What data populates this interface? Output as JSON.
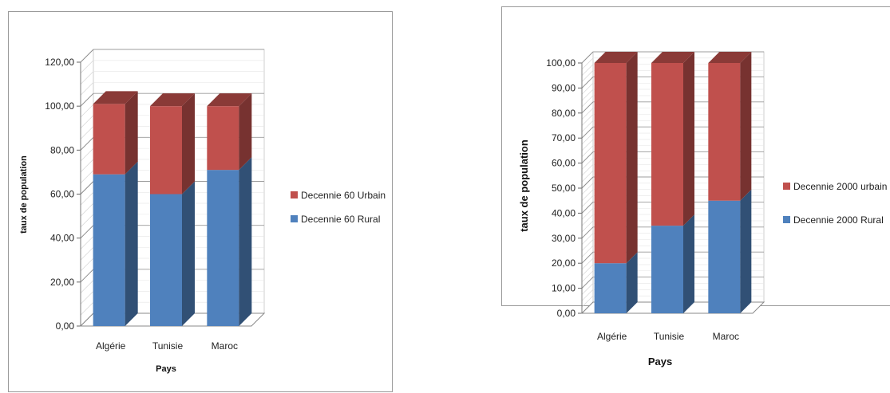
{
  "chart_data": [
    {
      "type": "bar",
      "stacked": true,
      "three_d": true,
      "categories": [
        "Algérie",
        "Tunisie",
        "Maroc"
      ],
      "series": [
        {
          "name": "Decennie 60 Rural",
          "values": [
            69,
            60,
            71
          ],
          "color": "#4f81bd"
        },
        {
          "name": "Decennie 60 Urbain",
          "values": [
            32,
            40,
            29
          ],
          "color": "#c0504d"
        }
      ],
      "xlabel": "Pays",
      "ylabel": "taux de population",
      "ylim": [
        0,
        120
      ],
      "yticks": [
        "0,00",
        "20,00",
        "40,00",
        "60,00",
        "80,00",
        "100,00",
        "120,00"
      ],
      "grid": true,
      "legend_position": "right"
    },
    {
      "type": "bar",
      "stacked": true,
      "three_d": true,
      "categories": [
        "Algérie",
        "Tunisie",
        "Maroc"
      ],
      "series": [
        {
          "name": "Decennie 2000 Rural",
          "values": [
            20,
            35,
            45
          ],
          "color": "#4f81bd"
        },
        {
          "name": "Decennie 2000 urbain",
          "values": [
            80,
            65,
            55
          ],
          "color": "#c0504d"
        }
      ],
      "xlabel": "Pays",
      "ylabel": "taux de population",
      "ylim": [
        0,
        100
      ],
      "yticks": [
        "0,00",
        "10,00",
        "20,00",
        "30,00",
        "40,00",
        "50,00",
        "60,00",
        "70,00",
        "80,00",
        "90,00",
        "100,00"
      ],
      "grid": true,
      "legend_position": "right"
    }
  ]
}
